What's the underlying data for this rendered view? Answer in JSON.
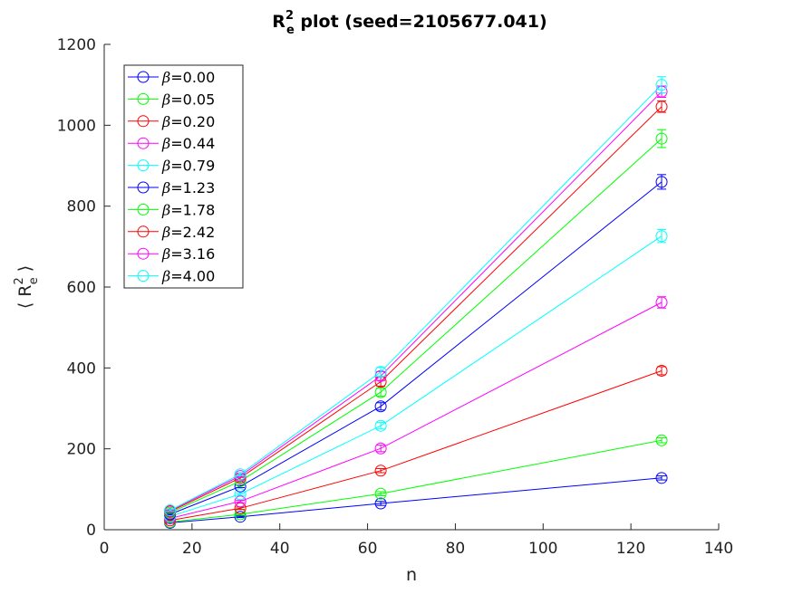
{
  "chart_data": {
    "type": "line",
    "title_base": "R",
    "title_sup": "2",
    "title_sub": "e",
    "title_rest": " plot   (seed=2105677.041)",
    "xlabel": "n",
    "ylabel_open": "⟨",
    "ylabel_base": "R",
    "ylabel_sup": "2",
    "ylabel_sub": "e",
    "ylabel_close": "⟩",
    "xlim": [
      0,
      140
    ],
    "ylim": [
      0,
      1200
    ],
    "xticks": [
      0,
      20,
      40,
      60,
      80,
      100,
      120,
      140
    ],
    "yticks": [
      0,
      200,
      400,
      600,
      800,
      1000,
      1200
    ],
    "grid": false,
    "legend_position": "top-left",
    "x": [
      15,
      31,
      63,
      127
    ],
    "series": [
      {
        "name_symbol": "β",
        "name_value": "=0.00",
        "color": "#0000ff",
        "values": [
          17,
          32,
          65,
          128
        ],
        "errors": [
          1,
          2,
          5,
          5
        ]
      },
      {
        "name_symbol": "β",
        "name_value": "=0.05",
        "color": "#00ff00",
        "values": [
          19,
          38,
          89,
          221
        ],
        "errors": [
          1,
          2,
          5,
          6
        ]
      },
      {
        "name_symbol": "β",
        "name_value": "=0.20",
        "color": "#ff0000",
        "values": [
          23,
          53,
          146,
          393
        ],
        "errors": [
          1,
          3,
          5,
          10
        ]
      },
      {
        "name_symbol": "β",
        "name_value": "=0.44",
        "color": "#ff00ff",
        "values": [
          28,
          70,
          201,
          562
        ],
        "errors": [
          1,
          3,
          8,
          14
        ]
      },
      {
        "name_symbol": "β",
        "name_value": "=0.79",
        "color": "#00ffff",
        "values": [
          33,
          88,
          257,
          726
        ],
        "errors": [
          1,
          3,
          8,
          16
        ]
      },
      {
        "name_symbol": "β",
        "name_value": "=1.23",
        "color": "#0000ff",
        "values": [
          38,
          107,
          305,
          860
        ],
        "errors": [
          1,
          3,
          9,
          18
        ]
      },
      {
        "name_symbol": "β",
        "name_value": "=1.78",
        "color": "#00ff00",
        "values": [
          42,
          120,
          340,
          967
        ],
        "errors": [
          1,
          4,
          10,
          22
        ]
      },
      {
        "name_symbol": "β",
        "name_value": "=2.42",
        "color": "#ff0000",
        "values": [
          45,
          128,
          366,
          1046
        ],
        "errors": [
          2,
          4,
          11,
          14
        ]
      },
      {
        "name_symbol": "β",
        "name_value": "=3.16",
        "color": "#ff00ff",
        "values": [
          47,
          133,
          380,
          1083
        ],
        "errors": [
          2,
          4,
          11,
          14
        ]
      },
      {
        "name_symbol": "β",
        "name_value": "=4.00",
        "color": "#00ffff",
        "values": [
          48,
          137,
          390,
          1100
        ],
        "errors": [
          2,
          4,
          11,
          20
        ]
      }
    ]
  }
}
